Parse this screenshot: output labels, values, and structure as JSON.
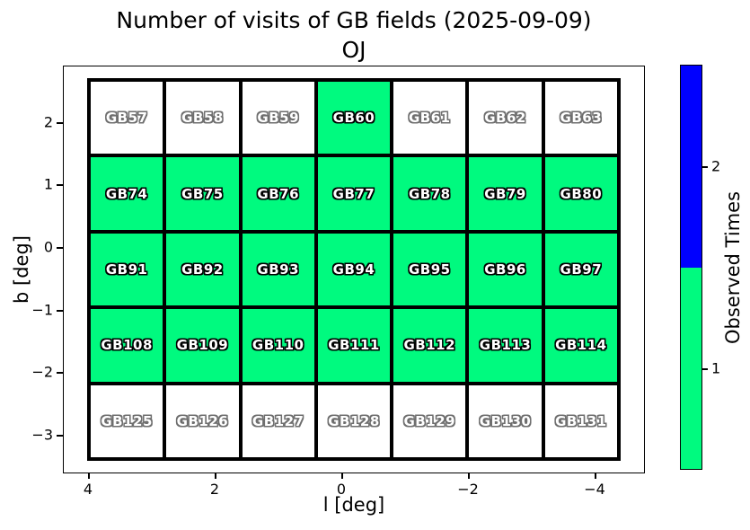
{
  "figure": {
    "title": "Number of visits of GB fields (2025-09-09)",
    "subtitle": "OJ"
  },
  "axes": {
    "xlabel": "l [deg]",
    "ylabel": "b [deg]",
    "x_tick_labels": [
      "4",
      "2",
      "0",
      "−2",
      "−4"
    ],
    "y_tick_labels": [
      "2",
      "1",
      "0",
      "−1",
      "−2",
      "−3"
    ]
  },
  "colorbar": {
    "label": "Observed Times",
    "tick_labels": [
      "2",
      "1"
    ],
    "segments": [
      {
        "value": 2,
        "color": "#0000FF"
      },
      {
        "value": 1,
        "color": "#00FA7F"
      }
    ]
  },
  "chart_data": {
    "type": "heatmap",
    "title": "Number of visits of GB fields (2025-09-09)",
    "subtitle": "OJ",
    "xlabel": "l [deg]",
    "ylabel": "b [deg]",
    "x_ticks": [
      4,
      2,
      0,
      -2,
      -4
    ],
    "y_ticks": [
      2,
      1,
      0,
      -1,
      -2,
      -3
    ],
    "xlim": [
      4.4,
      -4.8
    ],
    "ylim": [
      -3.6,
      2.9
    ],
    "colorbar_label": "Observed Times",
    "colormap": {
      "0": "#FFFFFF",
      "1": "#00FA7F",
      "2": "#0000FF"
    },
    "label_style": {
      "fill": "#FFFFFF",
      "outline_observed": "#000000",
      "outline_unobserved": "#6E6E6E"
    },
    "rows": [
      {
        "fields": [
          "GB57",
          "GB58",
          "GB59",
          "GB60",
          "GB61",
          "GB62",
          "GB63"
        ],
        "visits": [
          0,
          0,
          0,
          1,
          0,
          0,
          0
        ]
      },
      {
        "fields": [
          "GB74",
          "GB75",
          "GB76",
          "GB77",
          "GB78",
          "GB79",
          "GB80"
        ],
        "visits": [
          1,
          1,
          1,
          1,
          1,
          1,
          1
        ]
      },
      {
        "fields": [
          "GB91",
          "GB92",
          "GB93",
          "GB94",
          "GB95",
          "GB96",
          "GB97"
        ],
        "visits": [
          1,
          1,
          1,
          1,
          1,
          1,
          1
        ]
      },
      {
        "fields": [
          "GB108",
          "GB109",
          "GB110",
          "GB111",
          "GB112",
          "GB113",
          "GB114"
        ],
        "visits": [
          1,
          1,
          1,
          1,
          1,
          1,
          1
        ]
      },
      {
        "fields": [
          "GB125",
          "GB126",
          "GB127",
          "GB128",
          "GB129",
          "GB130",
          "GB131"
        ],
        "visits": [
          0,
          0,
          0,
          0,
          0,
          0,
          0
        ]
      }
    ]
  }
}
